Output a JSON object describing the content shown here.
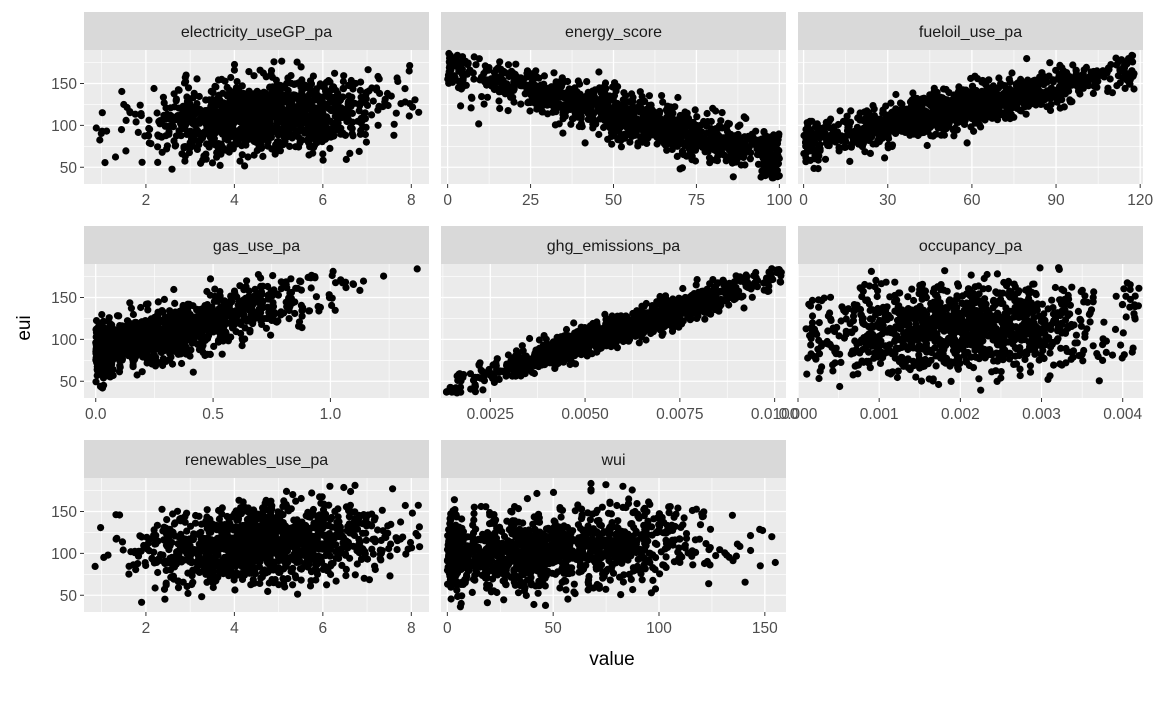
{
  "chart_data": {
    "type": "scatter",
    "layout": "facet_wrap",
    "xlabel": "value",
    "ylabel": "eui",
    "y_ticks": [
      50,
      100,
      150
    ],
    "ylim": [
      30,
      190
    ],
    "colors": {
      "panel_bg": "#EBEBEB",
      "strip_bg": "#D9D9D9",
      "grid_major": "#FFFFFF",
      "point": "#000000"
    },
    "panels": [
      {
        "name": "electricity_useGP_pa",
        "xlim": [
          0.6,
          8.4
        ],
        "x_ticks": [
          2,
          4,
          6,
          8
        ],
        "x_tick_labels": [
          "2",
          "4",
          "6",
          "8"
        ],
        "trend": {
          "center": 4.6,
          "spread": 1.3,
          "clip": [
            0.8,
            8.2
          ],
          "y_at_min": 95,
          "y_at_max": 125,
          "noise": 22
        },
        "n_points": 1200
      },
      {
        "name": "energy_score",
        "xlim": [
          -2,
          102
        ],
        "x_ticks": [
          0,
          25,
          50,
          75,
          100
        ],
        "x_tick_labels": [
          "0",
          "25",
          "50",
          "75",
          "100"
        ],
        "trend": {
          "center": 55,
          "spread": 28,
          "clip": [
            0,
            100
          ],
          "y_at_min": 170,
          "y_at_max": 60,
          "noise": 14
        },
        "n_points": 1200
      },
      {
        "name": "fueloil_use_pa",
        "xlim": [
          -2,
          121
        ],
        "x_ticks": [
          0,
          30,
          60,
          90,
          120
        ],
        "x_tick_labels": [
          "0",
          "30",
          "60",
          "90",
          "120"
        ],
        "trend": {
          "center": 55,
          "spread": 30,
          "clip": [
            0,
            118
          ],
          "y_at_min": 80,
          "y_at_max": 165,
          "noise": 12
        },
        "n_points": 1200
      },
      {
        "name": "gas_use_pa",
        "xlim": [
          -0.05,
          1.42
        ],
        "x_ticks": [
          0.0,
          0.5,
          1.0
        ],
        "x_tick_labels": [
          "0.0",
          "0.5",
          "1.0"
        ],
        "trend": {
          "center": 0.3,
          "spread": 0.3,
          "clip": [
            0,
            1.38
          ],
          "y_at_min": 85,
          "y_at_max": 185,
          "noise": 16
        },
        "n_points": 1200
      },
      {
        "name": "ghg_emissions_pa",
        "xlim": [
          0.0012,
          0.0103
        ],
        "x_ticks": [
          0.0025,
          0.005,
          0.0075,
          0.01
        ],
        "x_tick_labels": [
          "0.0025",
          "0.0050",
          "0.0075",
          "0.0100"
        ],
        "trend": {
          "center": 0.0058,
          "spread": 0.0019,
          "clip": [
            0.0013,
            0.0102
          ],
          "y_at_min": 40,
          "y_at_max": 178,
          "noise": 9
        },
        "n_points": 1200
      },
      {
        "name": "occupancy_pa",
        "xlim": [
          0.0,
          0.00425
        ],
        "x_ticks": [
          0.0,
          0.001,
          0.002,
          0.003,
          0.004
        ],
        "x_tick_labels": [
          "0.000",
          "0.001",
          "0.002",
          "0.003",
          "0.004"
        ],
        "trend": {
          "center": 0.002,
          "spread": 0.0009,
          "clip": [
            0.0001,
            0.0042
          ],
          "y_at_min": 105,
          "y_at_max": 122,
          "noise": 26
        },
        "n_points": 1200
      },
      {
        "name": "renewables_use_pa",
        "xlim": [
          0.6,
          8.4
        ],
        "x_ticks": [
          2,
          4,
          6,
          8
        ],
        "x_tick_labels": [
          "2",
          "4",
          "6",
          "8"
        ],
        "trend": {
          "center": 4.6,
          "spread": 1.3,
          "clip": [
            0.8,
            8.2
          ],
          "y_at_min": 95,
          "y_at_max": 125,
          "noise": 22
        },
        "n_points": 1200
      },
      {
        "name": "wui",
        "xlim": [
          -3,
          160
        ],
        "x_ticks": [
          0,
          50,
          100,
          150
        ],
        "x_tick_labels": [
          "0",
          "50",
          "100",
          "150"
        ],
        "trend": {
          "center": 45,
          "spread": 38,
          "clip": [
            0,
            155
          ],
          "y_at_min": 95,
          "y_at_max": 125,
          "noise": 24
        },
        "n_points": 1200
      }
    ]
  }
}
